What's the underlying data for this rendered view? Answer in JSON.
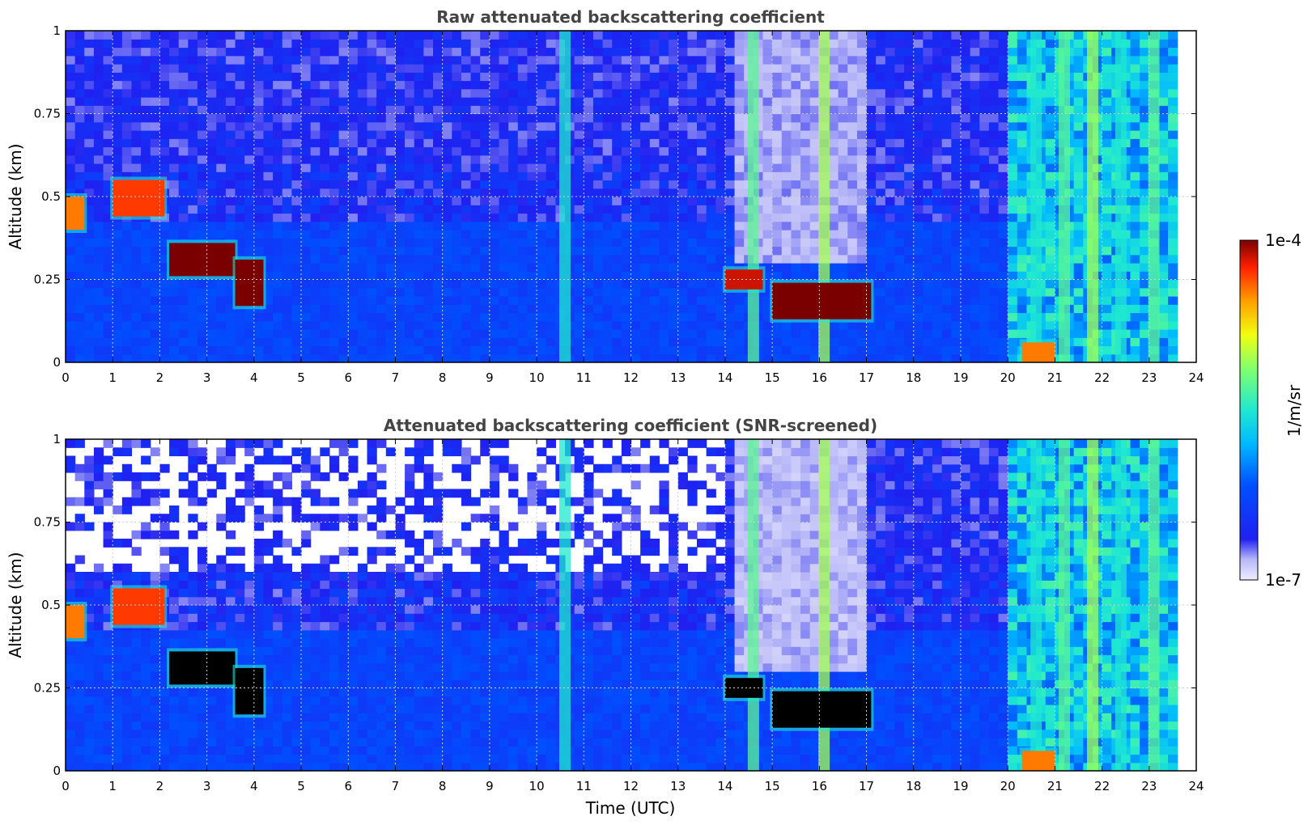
{
  "chart_data": [
    {
      "type": "heatmap",
      "title": "Raw attenuated backscattering coefficient",
      "xlabel": "",
      "ylabel": "Altitude (km)",
      "xlim": [
        0,
        24
      ],
      "ylim": [
        0,
        1
      ],
      "xticks": [
        0,
        1,
        2,
        3,
        4,
        5,
        6,
        7,
        8,
        9,
        10,
        11,
        12,
        13,
        14,
        15,
        16,
        17,
        18,
        19,
        20,
        21,
        22,
        23,
        24
      ],
      "yticks": [
        0,
        0.25,
        0.5,
        0.75,
        1
      ],
      "ytick_labels": [
        "0",
        "0.25",
        "0.5",
        "0.75",
        "1"
      ],
      "grid": true,
      "colormap": "jet",
      "features": [
        {
          "t": [
            0.0,
            0.4
          ],
          "alt": [
            0.4,
            0.5
          ],
          "level": 0.85
        },
        {
          "t": [
            1.0,
            2.1
          ],
          "alt": [
            0.44,
            0.55
          ],
          "level": 0.9
        },
        {
          "t": [
            2.2,
            3.6
          ],
          "alt": [
            0.26,
            0.36
          ],
          "level": 1.0
        },
        {
          "t": [
            3.6,
            4.2
          ],
          "alt": [
            0.17,
            0.31
          ],
          "level": 1.0
        },
        {
          "t": [
            14.0,
            14.8
          ],
          "alt": [
            0.22,
            0.28
          ],
          "level": 0.95
        },
        {
          "t": [
            15.0,
            17.1
          ],
          "alt": [
            0.13,
            0.24
          ],
          "level": 1.0
        },
        {
          "t": [
            20.3,
            21.0
          ],
          "alt": [
            0.0,
            0.06
          ],
          "level": 0.85
        }
      ]
    },
    {
      "type": "heatmap",
      "title": "Attenuated backscattering coefficient (SNR-screened)",
      "xlabel": "Time (UTC)",
      "ylabel": "Altitude (km)",
      "xlim": [
        0,
        24
      ],
      "ylim": [
        0,
        1
      ],
      "xticks": [
        0,
        1,
        2,
        3,
        4,
        5,
        6,
        7,
        8,
        9,
        10,
        11,
        12,
        13,
        14,
        15,
        16,
        17,
        18,
        19,
        20,
        21,
        22,
        23,
        24
      ],
      "yticks": [
        0,
        0.25,
        0.5,
        0.75,
        1
      ],
      "ytick_labels": [
        "0",
        "0.25",
        "0.5",
        "0.75",
        "1"
      ],
      "grid": true,
      "colormap": "jet",
      "saturated_color": "#000000",
      "features": [
        {
          "t": [
            0.0,
            0.4
          ],
          "alt": [
            0.4,
            0.5
          ],
          "level": 0.85
        },
        {
          "t": [
            1.0,
            2.1
          ],
          "alt": [
            0.44,
            0.55
          ],
          "level": 0.9
        },
        {
          "t": [
            2.2,
            3.6
          ],
          "alt": [
            0.26,
            0.36
          ],
          "level": 1.0
        },
        {
          "t": [
            3.6,
            4.2
          ],
          "alt": [
            0.17,
            0.31
          ],
          "level": 1.0
        },
        {
          "t": [
            14.0,
            14.8
          ],
          "alt": [
            0.22,
            0.28
          ],
          "level": 0.95
        },
        {
          "t": [
            15.0,
            17.1
          ],
          "alt": [
            0.13,
            0.24
          ],
          "level": 1.0
        },
        {
          "t": [
            20.3,
            21.0
          ],
          "alt": [
            0.0,
            0.06
          ],
          "level": 0.85
        }
      ]
    }
  ],
  "colorbar": {
    "label": "1/m/sr",
    "max_label": "1e-4",
    "min_label": "1e-7",
    "vmin": 1e-07,
    "vmax": 0.0001,
    "scale": "log"
  }
}
